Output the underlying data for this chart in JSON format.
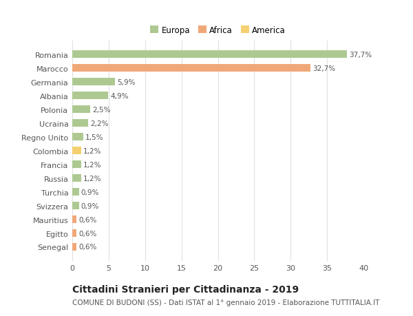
{
  "countries": [
    "Senegal",
    "Egitto",
    "Mauritius",
    "Svizzera",
    "Turchia",
    "Russia",
    "Francia",
    "Colombia",
    "Regno Unito",
    "Ucraina",
    "Polonia",
    "Albania",
    "Germania",
    "Marocco",
    "Romania"
  ],
  "values": [
    0.6,
    0.6,
    0.6,
    0.9,
    0.9,
    1.2,
    1.2,
    1.2,
    1.5,
    2.2,
    2.5,
    4.9,
    5.9,
    32.7,
    37.7
  ],
  "labels": [
    "0,6%",
    "0,6%",
    "0,6%",
    "0,9%",
    "0,9%",
    "1,2%",
    "1,2%",
    "1,2%",
    "1,5%",
    "2,2%",
    "2,5%",
    "4,9%",
    "5,9%",
    "32,7%",
    "37,7%"
  ],
  "colors": [
    "#f0a878",
    "#f0a878",
    "#f0a878",
    "#adc991",
    "#adc991",
    "#adc991",
    "#adc991",
    "#f5d070",
    "#adc991",
    "#adc991",
    "#adc991",
    "#adc991",
    "#adc991",
    "#f0a878",
    "#adc991"
  ],
  "legend_labels": [
    "Europa",
    "Africa",
    "America"
  ],
  "legend_colors": [
    "#adc991",
    "#f0a878",
    "#f5d070"
  ],
  "title": "Cittadini Stranieri per Cittadinanza - 2019",
  "subtitle": "COMUNE DI BUDONI (SS) - Dati ISTAT al 1° gennaio 2019 - Elaborazione TUTTITALIA.IT",
  "xlim": [
    0,
    40
  ],
  "xticks": [
    0,
    5,
    10,
    15,
    20,
    25,
    30,
    35,
    40
  ],
  "background_color": "#ffffff",
  "grid_color": "#e0e0e0",
  "bar_height": 0.55,
  "title_fontsize": 10,
  "subtitle_fontsize": 7.5,
  "label_fontsize": 7.5,
  "tick_fontsize": 8,
  "legend_fontsize": 8.5
}
